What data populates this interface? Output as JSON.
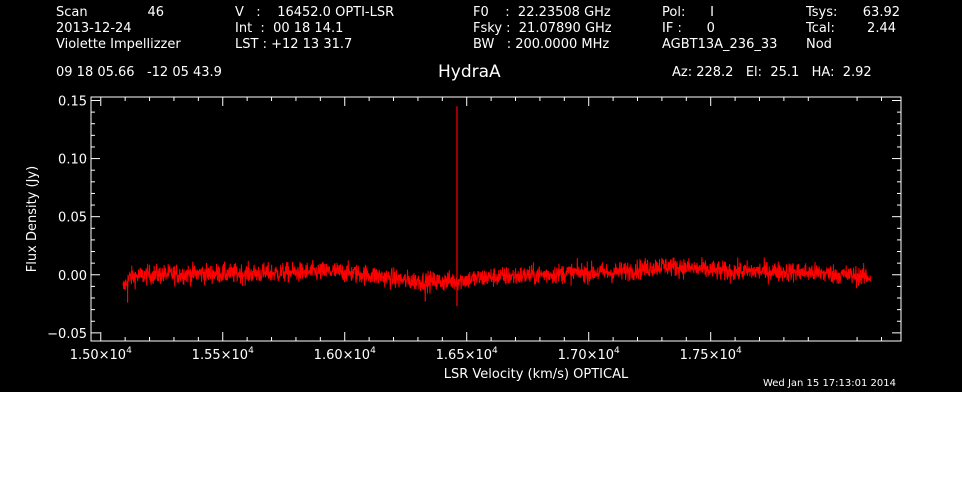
{
  "header": {
    "col1": {
      "scan_label": "Scan",
      "scan_value": "46",
      "date": "2013-12-24",
      "observer": "Violette Impellizzer"
    },
    "col2": {
      "v_line": "V   :    16452.0 OPTI-LSR",
      "int_line": "Int  :  00 18 14.1",
      "lst_line": "LST : +12 13 31.7"
    },
    "col3": {
      "f0_line": "F0    :  22.23508 GHz",
      "fsky_line": "Fsky :  21.07890 GHz",
      "bw_line": "BW   : 200.0000 MHz"
    },
    "col4": {
      "pol_line": "Pol:      I",
      "if_line": "IF :      0",
      "project": "AGBT13A_236_33"
    },
    "col5": {
      "tsys_label": "Tsys:",
      "tsys_value": "63.92",
      "tcal_label": "Tcal:",
      "tcal_value": "2.44",
      "mode": "Nod"
    },
    "coords": "09 18 05.66   -12 05 43.9",
    "source": "HydraA",
    "azelha": "Az: 228.2   El:  25.1   HA:  2.92"
  },
  "timestamp": "Wed Jan 15 17:13:01 2014",
  "colors": {
    "background": "#000000",
    "foreground": "#ffffff",
    "trace": "#ff0000"
  },
  "chart_data": {
    "type": "line",
    "title": "HydraA",
    "xlabel": "LSR Velocity (km/s) OPTICAL",
    "ylabel": "Flux Density (Jy)",
    "xlim": [
      14960,
      18280
    ],
    "ylim": [
      -0.057,
      0.153
    ],
    "x_ticks": [
      {
        "value": 15000,
        "mantissa": "1.50",
        "exponent": "4"
      },
      {
        "value": 15500,
        "mantissa": "1.55",
        "exponent": "4"
      },
      {
        "value": 16000,
        "mantissa": "1.60",
        "exponent": "4"
      },
      {
        "value": 16500,
        "mantissa": "1.65",
        "exponent": "4"
      },
      {
        "value": 17000,
        "mantissa": "1.70",
        "exponent": "4"
      },
      {
        "value": 17500,
        "mantissa": "1.75",
        "exponent": "4"
      }
    ],
    "y_ticks": [
      {
        "value": -0.05,
        "label": "−0.05"
      },
      {
        "value": 0.0,
        "label": "0.00"
      },
      {
        "value": 0.05,
        "label": "0.05"
      },
      {
        "value": 0.1,
        "label": "0.10"
      },
      {
        "value": 0.15,
        "label": "0.15"
      }
    ],
    "grid": false,
    "series": [
      {
        "velocity_range": [
          15090,
          18155
        ],
        "noise_rms": 0.006,
        "baseline": [
          [
            15090,
            -0.012
          ],
          [
            15120,
            -0.002
          ],
          [
            15200,
            0.0
          ],
          [
            15400,
            0.001
          ],
          [
            15600,
            0.001
          ],
          [
            15800,
            0.002
          ],
          [
            15950,
            0.003
          ],
          [
            16100,
            0.0
          ],
          [
            16250,
            -0.005
          ],
          [
            16400,
            -0.006
          ],
          [
            16500,
            -0.004
          ],
          [
            16600,
            -0.002
          ],
          [
            16800,
            0.0
          ],
          [
            16950,
            0.002
          ],
          [
            17100,
            0.002
          ],
          [
            17250,
            0.006
          ],
          [
            17300,
            0.008
          ],
          [
            17400,
            0.006
          ],
          [
            17550,
            0.003
          ],
          [
            17750,
            0.003
          ],
          [
            17900,
            0.002
          ],
          [
            18050,
            0.0
          ],
          [
            18155,
            -0.002
          ]
        ],
        "spikes": [
          {
            "x": 16460,
            "y": 0.145
          },
          {
            "x": 16460,
            "y": -0.027
          },
          {
            "x": 16330,
            "y": -0.023
          },
          {
            "x": 15110,
            "y": -0.024
          }
        ]
      }
    ]
  }
}
